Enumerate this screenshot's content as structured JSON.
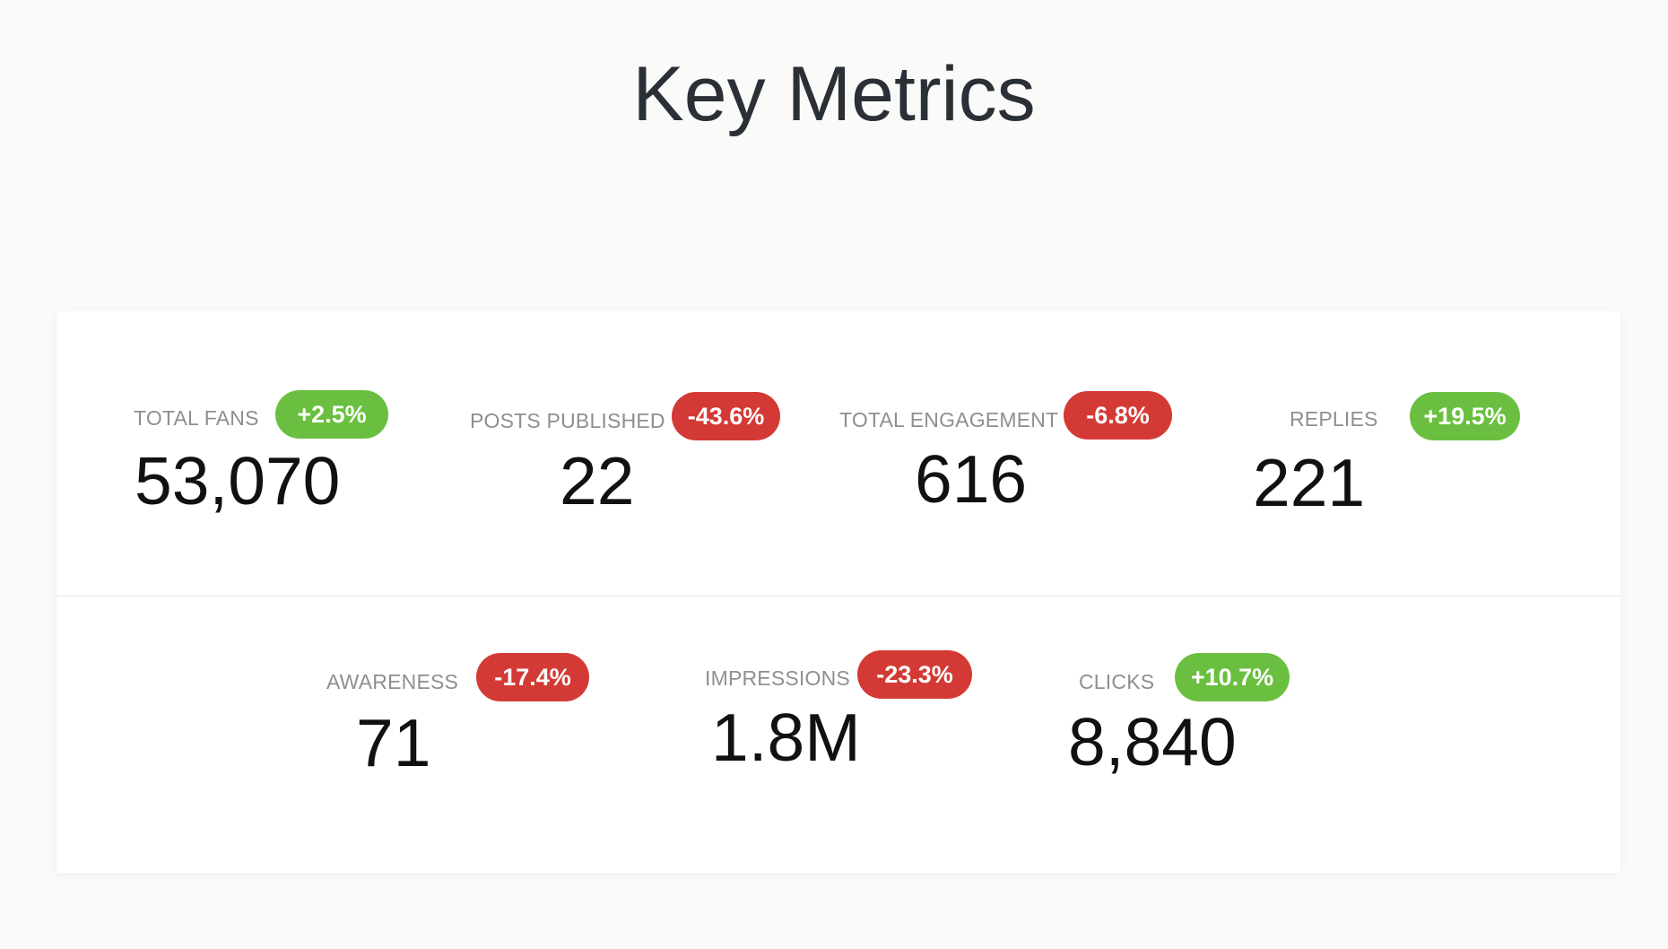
{
  "page": {
    "title": "Key Metrics"
  },
  "colors": {
    "positive": "#6abf40",
    "negative": "#d43a35"
  },
  "metrics": [
    {
      "label": "TOTAL FANS",
      "value": "53,070",
      "change": "+2.5%",
      "trend": "up"
    },
    {
      "label": "POSTS PUBLISHED",
      "value": "22",
      "change": "-43.6%",
      "trend": "down"
    },
    {
      "label": "TOTAL ENGAGEMENT",
      "value": "616",
      "change": "-6.8%",
      "trend": "down"
    },
    {
      "label": "REPLIES",
      "value": "221",
      "change": "+19.5%",
      "trend": "up"
    },
    {
      "label": "AWARENESS",
      "value": "71",
      "change": "-17.4%",
      "trend": "down"
    },
    {
      "label": "IMPRESSIONS",
      "value": "1.8M",
      "change": "-23.3%",
      "trend": "down"
    },
    {
      "label": "CLICKS",
      "value": "8,840",
      "change": "+10.7%",
      "trend": "up"
    }
  ]
}
